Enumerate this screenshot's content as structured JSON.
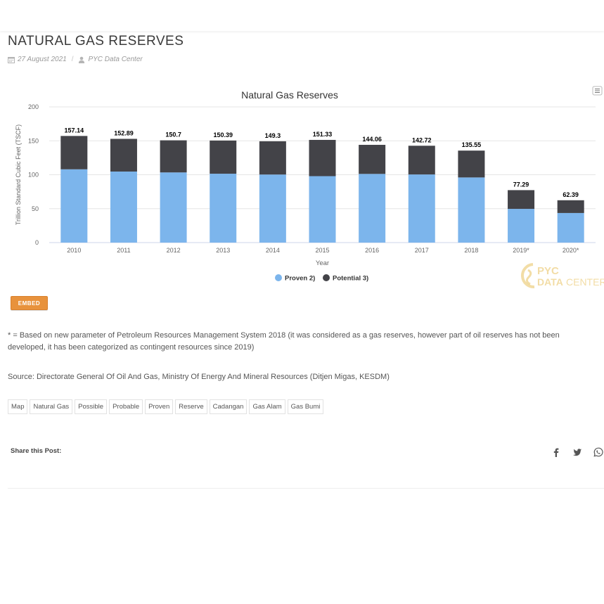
{
  "post": {
    "title": "NATURAL GAS RESERVES",
    "date": "27 August 2021",
    "date_separator": "/",
    "author": "PYC Data Center"
  },
  "chart_data": {
    "type": "bar",
    "stacked": true,
    "title": "Natural Gas Reserves",
    "xlabel": "Year",
    "ylabel": "Trillion Standard Cubic Feet (TSCF)",
    "ylim": [
      0,
      200
    ],
    "yticks": [
      0,
      50,
      100,
      150,
      200
    ],
    "grid": true,
    "legend_position": "bottom-center",
    "categories": [
      "2010",
      "2011",
      "2012",
      "2013",
      "2014",
      "2015",
      "2016",
      "2017",
      "2018",
      "2019*",
      "2020*"
    ],
    "series": [
      {
        "name": "Proven 2)",
        "color": "#7cb5ec",
        "values": [
          108,
          104.7,
          103.4,
          101.5,
          100.3,
          97.9,
          101.2,
          100.4,
          96,
          49.7,
          43.6
        ]
      },
      {
        "name": "Potential 3)",
        "color": "#434348",
        "values": [
          49.14,
          48.19,
          47.3,
          48.89,
          49,
          53.43,
          42.86,
          42.32,
          39.55,
          27.59,
          18.79
        ]
      }
    ],
    "totals": [
      "157.14",
      "152.89",
      "150.7",
      "150.39",
      "149.3",
      "151.33",
      "144.06",
      "142.72",
      "135.55",
      "77.29",
      "62.39"
    ],
    "menu_icon": "hamburger-menu-icon"
  },
  "watermark": {
    "line1": "PYC",
    "line2": "DATA",
    "line3": "CENTER"
  },
  "embed": {
    "label": "EMBED"
  },
  "notes": {
    "note": "* = Based on new parameter of Petroleum Resources Management System 2018 (it was considered as a gas reserves, however part of oil reserves has not been developed, it has been categorized as contingent resources since 2019)",
    "source": "Source: Directorate General Of Oil And Gas, Ministry Of Energy And Mineral Resources (Ditjen Migas, KESDM)"
  },
  "tags": [
    "Map",
    "Natural Gas",
    "Possible",
    "Probable",
    "Proven",
    "Reserve",
    "Cadangan",
    "Gas Alam",
    "Gas Bumi"
  ],
  "share": {
    "label": "Share this Post:",
    "icons": [
      "facebook-icon",
      "twitter-icon",
      "whatsapp-icon"
    ]
  },
  "colors": {
    "accent": "#e8923c",
    "proven": "#7cb5ec",
    "potential": "#434348"
  }
}
